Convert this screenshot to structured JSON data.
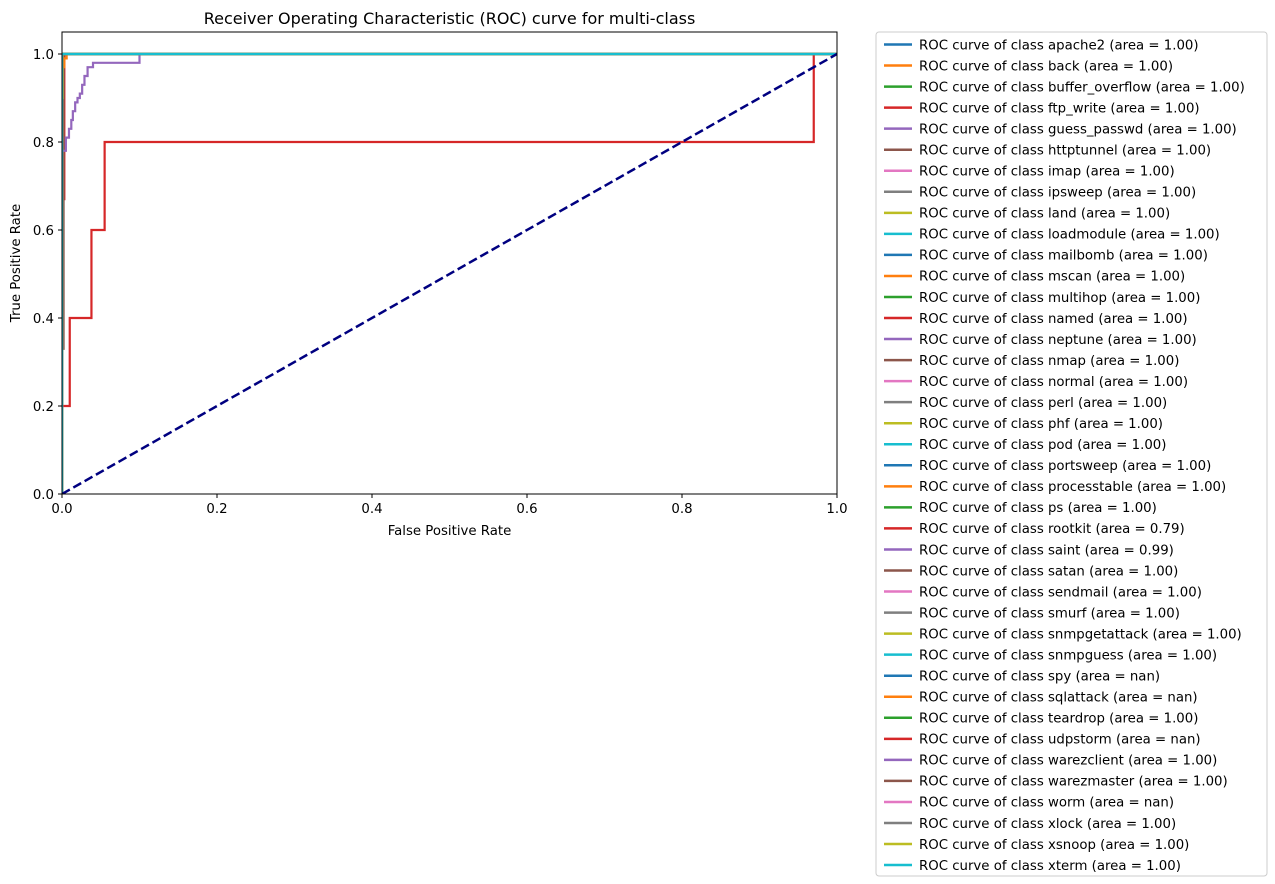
{
  "chart_data": {
    "type": "line",
    "title": "Receiver Operating Characteristic (ROC) curve for multi-class",
    "xlabel": "False Positive Rate",
    "ylabel": "True Positive Rate",
    "xlim": [
      0.0,
      1.0
    ],
    "ylim": [
      0.0,
      1.05
    ],
    "xticks": [
      "0.0",
      "0.2",
      "0.4",
      "0.6",
      "0.8",
      "1.0"
    ],
    "yticks": [
      "0.0",
      "0.2",
      "0.4",
      "0.6",
      "0.8",
      "1.0"
    ],
    "xtick_values": [
      0.0,
      0.2,
      0.4,
      0.6,
      0.8,
      1.0
    ],
    "ytick_values": [
      0.0,
      0.2,
      0.4,
      0.6,
      0.8,
      1.0
    ],
    "grid": false,
    "legend_position": "outside right",
    "chance_line": {
      "x": [
        0,
        1
      ],
      "y": [
        0,
        1
      ],
      "color": "#000080",
      "style": "dashed"
    },
    "series": [
      {
        "name": "ROC curve of class apache2 (area = 1.00)",
        "color": "#1f77b4",
        "x": [
          0,
          0,
          1
        ],
        "y": [
          0,
          1,
          1
        ]
      },
      {
        "name": "ROC curve of class back (area = 1.00)",
        "color": "#ff7f0e",
        "x": [
          0,
          0,
          1
        ],
        "y": [
          0,
          1,
          1
        ]
      },
      {
        "name": "ROC curve of class buffer_overflow (area = 1.00)",
        "color": "#2ca02c",
        "x": [
          0,
          0,
          0.001,
          0.001,
          1
        ],
        "y": [
          0,
          0.9,
          0.9,
          1,
          1
        ]
      },
      {
        "name": "ROC curve of class ftp_write (area = 1.00)",
        "color": "#d62728",
        "x": [
          0,
          0,
          0.003,
          0.003,
          1
        ],
        "y": [
          0,
          0.67,
          0.67,
          1,
          1
        ]
      },
      {
        "name": "ROC curve of class guess_passwd (area = 1.00)",
        "color": "#9467bd",
        "x": [
          0,
          0,
          0.001,
          0.001,
          1
        ],
        "y": [
          0,
          0.95,
          0.95,
          1,
          1
        ]
      },
      {
        "name": "ROC curve of class httptunnel (area = 1.00)",
        "color": "#8c564b",
        "x": [
          0,
          0,
          0.002,
          0.002,
          1
        ],
        "y": [
          0,
          0.33,
          0.33,
          1,
          1
        ]
      },
      {
        "name": "ROC curve of class imap (area = 1.00)",
        "color": "#e377c2",
        "x": [
          0,
          0,
          1
        ],
        "y": [
          0,
          1,
          1
        ]
      },
      {
        "name": "ROC curve of class ipsweep (area = 1.00)",
        "color": "#7f7f7f",
        "x": [
          0,
          0,
          1
        ],
        "y": [
          0,
          1,
          1
        ]
      },
      {
        "name": "ROC curve of class land (area = 1.00)",
        "color": "#bcbd22",
        "x": [
          0,
          0,
          0.001,
          0.001,
          1
        ],
        "y": [
          0,
          0.9,
          0.9,
          1,
          1
        ]
      },
      {
        "name": "ROC curve of class loadmodule (area = 1.00)",
        "color": "#17becf",
        "x": [
          0,
          0,
          1
        ],
        "y": [
          0,
          1,
          1
        ]
      },
      {
        "name": "ROC curve of class mailbomb (area = 1.00)",
        "color": "#1f77b4",
        "x": [
          0,
          0,
          1
        ],
        "y": [
          0,
          1,
          1
        ]
      },
      {
        "name": "ROC curve of class mscan (area = 1.00)",
        "color": "#ff7f0e",
        "x": [
          0,
          0,
          0.003,
          0.003,
          0.006,
          0.006,
          1
        ],
        "y": [
          0,
          0.97,
          0.97,
          0.99,
          0.99,
          1,
          1
        ]
      },
      {
        "name": "ROC curve of class multihop (area = 1.00)",
        "color": "#2ca02c",
        "x": [
          0,
          0,
          1
        ],
        "y": [
          0,
          1,
          1
        ]
      },
      {
        "name": "ROC curve of class named (area = 1.00)",
        "color": "#d62728",
        "x": [
          0,
          0,
          1
        ],
        "y": [
          0,
          1,
          1
        ]
      },
      {
        "name": "ROC curve of class neptune (area = 1.00)",
        "color": "#9467bd",
        "x": [
          0,
          0,
          1
        ],
        "y": [
          0,
          1,
          1
        ]
      },
      {
        "name": "ROC curve of class nmap (area = 1.00)",
        "color": "#8c564b",
        "x": [
          0,
          0,
          1
        ],
        "y": [
          0,
          1,
          1
        ]
      },
      {
        "name": "ROC curve of class normal (area = 1.00)",
        "color": "#e377c2",
        "x": [
          0,
          0,
          1
        ],
        "y": [
          0,
          1,
          1
        ]
      },
      {
        "name": "ROC curve of class perl (area = 1.00)",
        "color": "#7f7f7f",
        "x": [
          0,
          0,
          1
        ],
        "y": [
          0,
          1,
          1
        ]
      },
      {
        "name": "ROC curve of class phf (area = 1.00)",
        "color": "#bcbd22",
        "x": [
          0,
          0,
          1
        ],
        "y": [
          0,
          1,
          1
        ]
      },
      {
        "name": "ROC curve of class pod (area = 1.00)",
        "color": "#17becf",
        "x": [
          0,
          0,
          1
        ],
        "y": [
          0,
          1,
          1
        ]
      },
      {
        "name": "ROC curve of class portsweep (area = 1.00)",
        "color": "#1f77b4",
        "x": [
          0,
          0,
          1
        ],
        "y": [
          0,
          1,
          1
        ]
      },
      {
        "name": "ROC curve of class processtable (area = 1.00)",
        "color": "#ff7f0e",
        "x": [
          0,
          0,
          1
        ],
        "y": [
          0,
          1,
          1
        ]
      },
      {
        "name": "ROC curve of class ps (area = 1.00)",
        "color": "#2ca02c",
        "x": [
          0,
          0,
          1
        ],
        "y": [
          0,
          1,
          1
        ]
      },
      {
        "name": "ROC curve of class rootkit (area = 0.79)",
        "color": "#d62728",
        "x": [
          0,
          0,
          0.01,
          0.01,
          0.038,
          0.038,
          0.055,
          0.055,
          0.97,
          0.97,
          1
        ],
        "y": [
          0,
          0.2,
          0.2,
          0.4,
          0.4,
          0.6,
          0.6,
          0.8,
          0.8,
          1,
          1
        ]
      },
      {
        "name": "ROC curve of class saint (area = 0.99)",
        "color": "#9467bd",
        "x": [
          0,
          0,
          0.005,
          0.005,
          0.009,
          0.009,
          0.012,
          0.012,
          0.014,
          0.014,
          0.017,
          0.017,
          0.02,
          0.02,
          0.023,
          0.023,
          0.026,
          0.026,
          0.029,
          0.029,
          0.033,
          0.033,
          0.04,
          0.04,
          0.1,
          0.1,
          1
        ],
        "y": [
          0,
          0.78,
          0.78,
          0.81,
          0.81,
          0.83,
          0.83,
          0.85,
          0.85,
          0.87,
          0.87,
          0.89,
          0.89,
          0.9,
          0.9,
          0.91,
          0.91,
          0.93,
          0.93,
          0.95,
          0.95,
          0.97,
          0.97,
          0.98,
          0.98,
          1,
          1
        ]
      },
      {
        "name": "ROC curve of class satan (area = 1.00)",
        "color": "#8c564b",
        "x": [
          0,
          0,
          1
        ],
        "y": [
          0,
          1,
          1
        ]
      },
      {
        "name": "ROC curve of class sendmail (area = 1.00)",
        "color": "#e377c2",
        "x": [
          0,
          0,
          1
        ],
        "y": [
          0,
          1,
          1
        ]
      },
      {
        "name": "ROC curve of class smurf (area = 1.00)",
        "color": "#7f7f7f",
        "x": [
          0,
          0,
          1
        ],
        "y": [
          0,
          1,
          1
        ]
      },
      {
        "name": "ROC curve of class snmpgetattack (area = 1.00)",
        "color": "#bcbd22",
        "x": [
          0,
          0,
          1
        ],
        "y": [
          0,
          1,
          1
        ]
      },
      {
        "name": "ROC curve of class snmpguess (area = 1.00)",
        "color": "#17becf",
        "x": [
          0,
          0,
          1
        ],
        "y": [
          0,
          1,
          1
        ]
      },
      {
        "name": "ROC curve of class spy (area = nan)",
        "color": "#1f77b4",
        "x": [],
        "y": []
      },
      {
        "name": "ROC curve of class sqlattack (area = nan)",
        "color": "#ff7f0e",
        "x": [],
        "y": []
      },
      {
        "name": "ROC curve of class teardrop (area = 1.00)",
        "color": "#2ca02c",
        "x": [
          0,
          0,
          1
        ],
        "y": [
          0,
          1,
          1
        ]
      },
      {
        "name": "ROC curve of class udpstorm (area = nan)",
        "color": "#d62728",
        "x": [],
        "y": []
      },
      {
        "name": "ROC curve of class warezclient (area = 1.00)",
        "color": "#9467bd",
        "x": [
          0,
          0,
          1
        ],
        "y": [
          0,
          1,
          1
        ]
      },
      {
        "name": "ROC curve of class warezmaster (area = 1.00)",
        "color": "#8c564b",
        "x": [
          0,
          0,
          1
        ],
        "y": [
          0,
          1,
          1
        ]
      },
      {
        "name": "ROC curve of class worm (area = nan)",
        "color": "#e377c2",
        "x": [],
        "y": []
      },
      {
        "name": "ROC curve of class xlock (area = 1.00)",
        "color": "#7f7f7f",
        "x": [
          0,
          0,
          1
        ],
        "y": [
          0,
          1,
          1
        ]
      },
      {
        "name": "ROC curve of class xsnoop (area = 1.00)",
        "color": "#bcbd22",
        "x": [
          0,
          0,
          1
        ],
        "y": [
          0,
          1,
          1
        ]
      },
      {
        "name": "ROC curve of class xterm (area = 1.00)",
        "color": "#17becf",
        "x": [
          0,
          0,
          1
        ],
        "y": [
          0,
          1,
          1
        ]
      }
    ]
  }
}
